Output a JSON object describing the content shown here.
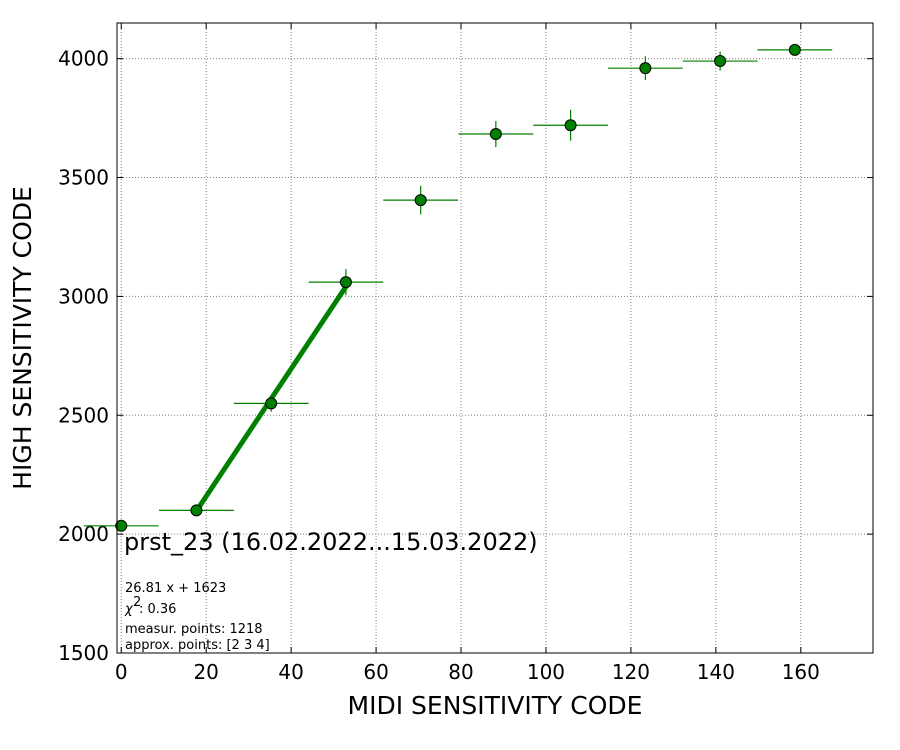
{
  "chart_data": {
    "type": "scatter",
    "xlabel": "MIDI SENSITIVITY CODE",
    "ylabel": "HIGH SENSITIVITY CODE",
    "xlim": [
      -1,
      177
    ],
    "ylim": [
      1500,
      4150
    ],
    "xticks": [
      0,
      20,
      40,
      60,
      80,
      100,
      120,
      140,
      160
    ],
    "yticks": [
      1500,
      2000,
      2500,
      3000,
      3500,
      4000
    ],
    "grid": true,
    "series": [
      {
        "color": "#008000",
        "points": [
          {
            "x": 0,
            "y": 2035,
            "xerr": 8.8,
            "yerr": 0
          },
          {
            "x": 17.7,
            "y": 2100,
            "xerr": 8.8,
            "yerr": 12
          },
          {
            "x": 35.3,
            "y": 2550,
            "xerr": 8.8,
            "yerr": 35
          },
          {
            "x": 52.9,
            "y": 3060,
            "xerr": 8.8,
            "yerr": 55
          },
          {
            "x": 70.5,
            "y": 3405,
            "xerr": 8.8,
            "yerr": 60
          },
          {
            "x": 88.2,
            "y": 3683,
            "xerr": 8.8,
            "yerr": 55
          },
          {
            "x": 105.8,
            "y": 3720,
            "xerr": 8.8,
            "yerr": 65
          },
          {
            "x": 123.4,
            "y": 3960,
            "xerr": 8.8,
            "yerr": 50
          },
          {
            "x": 141.0,
            "y": 3990,
            "xerr": 8.8,
            "yerr": 40
          },
          {
            "x": 158.6,
            "y": 4037,
            "xerr": 8.8,
            "yerr": 10
          }
        ]
      }
    ],
    "fit": {
      "color": "#008000",
      "slope": 26.81,
      "intercept": 1623,
      "x_range": [
        17.7,
        52.9
      ]
    },
    "annotations": {
      "main": "prst_23 (16.02.2022...15.03.2022)",
      "fit_label": "26.81 x + 1623",
      "chi2_label": ": 0.36",
      "measur_points": "measur. points: 1218",
      "approx_points": "approx. points: [2 3 4]"
    }
  }
}
